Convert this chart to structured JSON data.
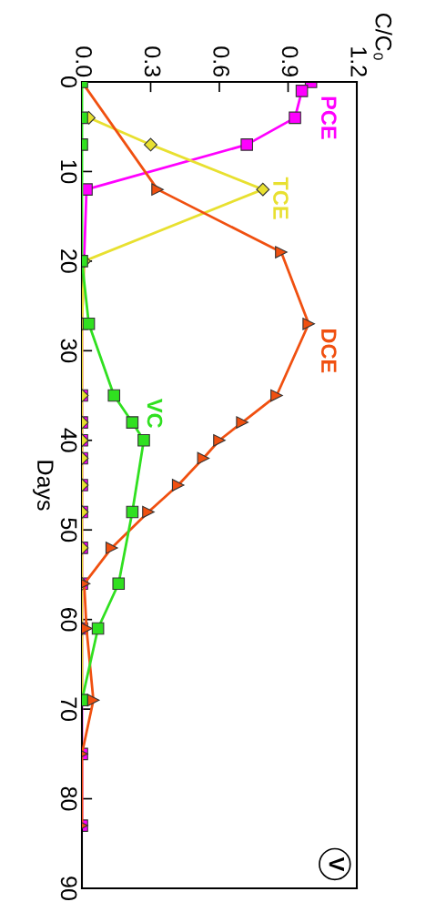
{
  "chart_data": {
    "type": "line",
    "orientation": "horizontal",
    "x2label": "C/C₀",
    "ylabel": "Days",
    "x2lim": [
      0,
      1.2
    ],
    "x2ticks": [
      {
        "value": 0,
        "label": "0.0"
      },
      {
        "value": 0.3,
        "label": "0.3"
      },
      {
        "value": 0.6,
        "label": "0.6"
      },
      {
        "value": 0.9,
        "label": "0.9"
      },
      {
        "value": 1.2,
        "label": "1.2"
      }
    ],
    "ylim": [
      90,
      0
    ],
    "yticks": [
      0,
      10,
      20,
      30,
      40,
      50,
      60,
      70,
      80,
      90
    ],
    "grid": false,
    "line_style": "solid",
    "annotations": [
      "V"
    ],
    "series": [
      {
        "name": "PCE",
        "color": "#ff00ff",
        "marker": "square",
        "axis": "x2",
        "x": [
          0,
          1,
          4,
          7,
          12,
          27,
          35,
          38,
          40,
          42,
          45,
          48,
          52,
          56,
          61,
          69,
          75,
          83
        ],
        "values": [
          1.0,
          0.96,
          0.93,
          0.72,
          0.02,
          0,
          0,
          0,
          0,
          0,
          0,
          0,
          0,
          0,
          0,
          0,
          0,
          0
        ]
      },
      {
        "name": "TCE",
        "color": "#e8e030",
        "marker": "diamond",
        "axis": "x2",
        "x": [
          4,
          7,
          12,
          20,
          27,
          35,
          38,
          40,
          42,
          45,
          48,
          52,
          56,
          61,
          69
        ],
        "values": [
          0.03,
          0.3,
          0.79,
          0.01,
          0,
          0,
          0,
          0,
          0,
          0,
          0,
          0,
          0,
          0,
          0
        ]
      },
      {
        "name": "DCE",
        "color": "#f05010",
        "marker": "triangle",
        "axis": "x2",
        "x": [
          0,
          12,
          19,
          27,
          35,
          38,
          40,
          42,
          45,
          48,
          52,
          56,
          61,
          69,
          75,
          83
        ],
        "values": [
          0,
          0.33,
          0.87,
          0.99,
          0.85,
          0.7,
          0.6,
          0.53,
          0.42,
          0.29,
          0.13,
          0.01,
          0.02,
          0.05,
          0,
          0
        ]
      },
      {
        "name": "VC",
        "color": "#30e020",
        "marker": "square",
        "axis": "x2",
        "x": [
          0,
          4,
          7,
          20,
          27,
          35,
          38,
          40,
          48,
          56,
          61,
          69
        ],
        "values": [
          0,
          0,
          0,
          0,
          0.03,
          0.14,
          0.22,
          0.27,
          0.22,
          0.16,
          0.07,
          0
        ]
      }
    ]
  }
}
